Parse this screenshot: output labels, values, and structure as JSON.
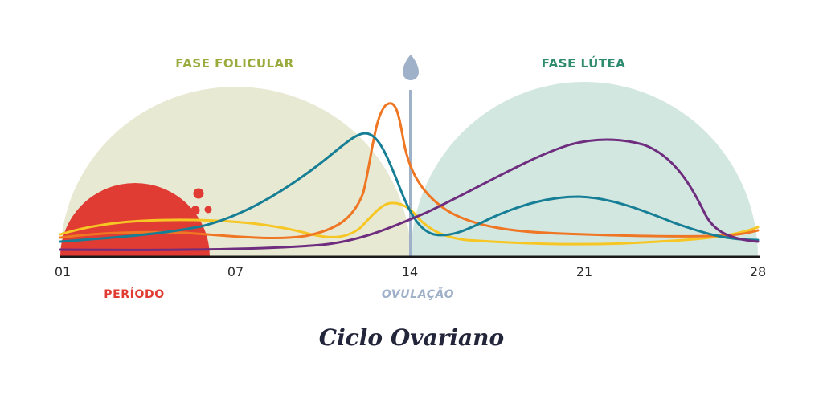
{
  "title": "Ciclo Ovariano",
  "phases": {
    "follicular": "FASE FOLICULAR",
    "luteal": "FASE LÚTEA"
  },
  "markers": {
    "period": "PERÍODO",
    "ovulation": "OVULAÇÃO"
  },
  "axis_ticks": [
    "01",
    "07",
    "14",
    "21",
    "28"
  ],
  "colors": {
    "follicular_bg": "#e8e9d3",
    "luteal_bg": "#d3e7e1",
    "follicular_text": "#9aaa3c",
    "luteal_text": "#2f8b6e",
    "period": "#e03c33",
    "ovulation": "#9fb0c9",
    "teal": "#167e95",
    "orange": "#ef7622",
    "yellow": "#f6c624",
    "purple": "#6e2d7e",
    "axis": "#1a1a1a"
  },
  "icons": [
    "ovum-drop-icon"
  ]
}
